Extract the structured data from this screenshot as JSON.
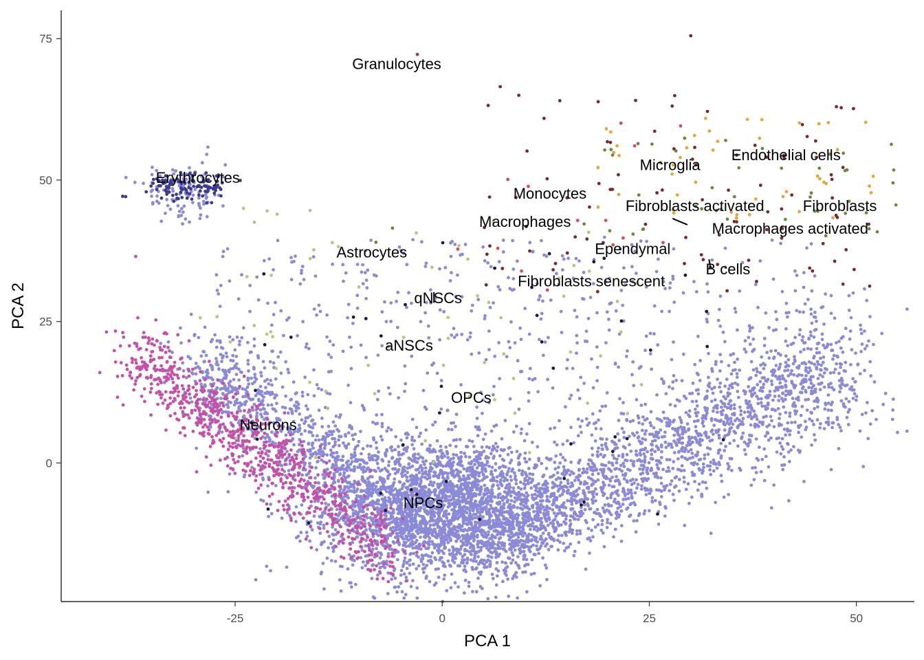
{
  "chart_data": {
    "type": "scatter",
    "title": "",
    "xlabel": "PCA 1",
    "ylabel": "PCA 2",
    "xlim": [
      -46,
      57
    ],
    "ylim": [
      -24.5,
      80
    ],
    "x_ticks": [
      -25,
      0,
      25,
      50
    ],
    "y_ticks": [
      0,
      25,
      50,
      75
    ],
    "grid": false,
    "legend": "none",
    "cluster_colors": {
      "NPCs": "#8a8ad8",
      "Neurons": "#c64fa8",
      "Erythrocytes": "#3a3a8c",
      "Granulocytes": "#8a3a7a",
      "Microglia": "#e0a838",
      "Endothelial cells": "#6a8a3a",
      "Fibroblasts": "#7a2828",
      "Fibroblasts activated": "#6a2020",
      "Macrophages activated": "#c84848",
      "Monocytes": "#d84a5a",
      "Macrophages": "#5a7a2a",
      "Astrocytes": "#b0c880",
      "Ependymal": "#5a1a2a",
      "B cells": "#8a5a2a",
      "Fibroblasts senescent": "#e8b070",
      "qNSCs": "#1a1a3a",
      "aNSCs": "#2a2a5a",
      "OPCs": "#c8d890"
    },
    "cluster_labels": [
      {
        "text": "Granulocytes",
        "x": -5.5,
        "y": 70.6
      },
      {
        "text": "Erythrocytes",
        "x": -29.5,
        "y": 50.5
      },
      {
        "text": "Endothelial cells",
        "x": 41.5,
        "y": 54.5
      },
      {
        "text": "Microglia",
        "x": 27.5,
        "y": 52.7
      },
      {
        "text": "Monocytes",
        "x": 13,
        "y": 47.7
      },
      {
        "text": "Fibroblasts activated",
        "x": 30.5,
        "y": 45.5
      },
      {
        "text": "Fibroblasts",
        "x": 48,
        "y": 45.5
      },
      {
        "text": "Macrophages",
        "x": 10,
        "y": 42.7
      },
      {
        "text": "Macrophages activated",
        "x": 42,
        "y": 41.5
      },
      {
        "text": "Astrocytes",
        "x": -8.5,
        "y": 37.3
      },
      {
        "text": "Ependymal",
        "x": 23,
        "y": 37.9
      },
      {
        "text": "B cells",
        "x": 34.5,
        "y": 34.3
      },
      {
        "text": "Fibroblasts senescent",
        "x": 18,
        "y": 32.2
      },
      {
        "text": "qNSCs",
        "x": -0.5,
        "y": 29.2
      },
      {
        "text": "aNSCs",
        "x": -4,
        "y": 20.8
      },
      {
        "text": "OPCs",
        "x": 3.5,
        "y": 11.6
      },
      {
        "text": "Neurons",
        "x": -21,
        "y": 6.8
      },
      {
        "text": "NPCs",
        "x": -2.3,
        "y": -7
      }
    ],
    "label_leaders": [
      {
        "from": [
          27.8,
          43.2
        ],
        "to": [
          29.6,
          42.1
        ]
      },
      {
        "from": [
          -1.0,
          30.2
        ],
        "to": [
          -1.0,
          28.3
        ]
      },
      {
        "from": [
          32.2,
          36.0
        ],
        "to": [
          32.4,
          34.5
        ]
      }
    ],
    "series": [
      {
        "name": "NPCs",
        "region": "core",
        "center": [
          0,
          -8
        ],
        "spread": [
          7,
          6
        ],
        "count": 2600
      },
      {
        "name": "NPCs",
        "region": "left-arm",
        "from": [
          -30,
          17
        ],
        "to": [
          -3,
          -12
        ],
        "count": 900
      },
      {
        "name": "NPCs",
        "region": "right-arm",
        "from": [
          5,
          -14
        ],
        "to": [
          50,
          18
        ],
        "count": 1800
      },
      {
        "name": "NPCs",
        "region": "scatter",
        "x_range": [
          -28,
          45
        ],
        "y_range": [
          -5,
          40
        ],
        "count": 700
      },
      {
        "name": "NPCs",
        "region": "erythro-cluster",
        "center": [
          -31,
          48
        ],
        "spread": [
          2.5,
          2.5
        ],
        "count": 110
      },
      {
        "name": "Neurons",
        "region": "left-wedge",
        "from": [
          -38,
          20
        ],
        "to": [
          -6,
          -16
        ],
        "count": 850
      },
      {
        "name": "Erythrocytes",
        "region": "cluster",
        "center": [
          -30.5,
          49
        ],
        "spread": [
          2.5,
          1.2
        ],
        "count": 110
      },
      {
        "name": "Fibroblasts",
        "region": "top-right",
        "x_range": [
          5,
          52
        ],
        "y_range": [
          30,
          65
        ],
        "count": 90
      },
      {
        "name": "Microglia",
        "region": "top-right",
        "x_range": [
          18,
          54
        ],
        "y_range": [
          43,
          62
        ],
        "count": 45
      },
      {
        "name": "Endothelial cells",
        "region": "top-right",
        "x_range": [
          15,
          55
        ],
        "y_range": [
          40,
          58
        ],
        "count": 45
      },
      {
        "name": "Monocytes",
        "region": "scattered",
        "x_range": [
          -2,
          35
        ],
        "y_range": [
          25,
          62
        ],
        "count": 14
      },
      {
        "name": "Astrocytes",
        "region": "scattered",
        "x_range": [
          -30,
          25
        ],
        "y_range": [
          0,
          45
        ],
        "count": 60
      },
      {
        "name": "qNSCs",
        "region": "scattered",
        "x_range": [
          -25,
          35
        ],
        "y_range": [
          -15,
          45
        ],
        "count": 45
      }
    ]
  }
}
